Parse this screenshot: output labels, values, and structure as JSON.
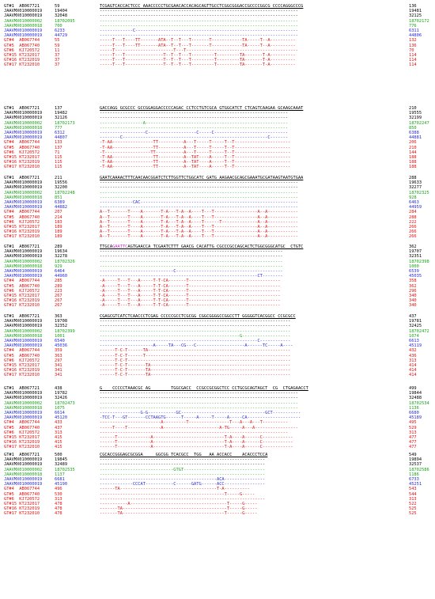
{
  "names": [
    "GT#1  AB067721",
    "JAAVMX010000019",
    "JAAVMX010000019",
    "JAAVMX010000002",
    "JAAVMX010000018",
    "JAAVMX010000019",
    "JAAVMX010000019",
    "GT#4  AB067744",
    "GT#5  AB067740",
    "GT#6  KJ720572",
    "GT#15 KT232017",
    "GT#16 KT232019",
    "GT#17 KT232010"
  ],
  "colors": {
    "black": "#000000",
    "green": "#18a418",
    "blue": "#2828e0",
    "red": "#e01010",
    "highlight": "#d020d0"
  },
  "blocks": [
    {
      "starts": [
        "59",
        "19404",
        "32048",
        "18702095",
        "700",
        "6233",
        "44729",
        "55",
        "59",
        "11",
        "37",
        "37",
        "37"
      ],
      "ends": [
        "136",
        "19481",
        "32125",
        "18702172",
        "776",
        "6311",
        "44806",
        "132",
        "136",
        "70",
        "114",
        "114",
        "114"
      ],
      "seqs": [
        "TCGAGTCACCACTCCC AAACCCCCTGCGAACACCACAGCAGTTGCCTCGGCGGGACCGCCCCGGCG CCCCAGGGCCCG",
        "------------------------------------------------------------------------------",
        "------------------------------------------------------------------------------",
        "------------------------------------------------------------------------------",
        "------------------------------------------------------------------------------",
        "-------------C----------------------------------------------------------------",
        "------------------------------------------------------------------------------",
        "-----T---T----TT-------ATA--T--T---T-------T------------TA-----T--A----------",
        "-----T---T----TT-------ATA--T--T---T-------T------------TA-----T--A----------",
        "-----T-----------------------T---T--------------------------------------------",
        "-----T---T---------------T--T--T---T---------T---------TA-------T-A----------",
        "-----T---T---------------T--T--T---T---------T---------TA-------T-A----------",
        "-----T---T---------------T--T--T---T---------T---------TA-------T-A----------"
      ]
    },
    {
      "starts": [
        "137",
        "19482",
        "32126",
        "18702173",
        "777",
        "6312",
        "44807",
        "133",
        "137",
        "71",
        "115",
        "115",
        "115"
      ],
      "ends": [
        "210",
        "19555",
        "32199",
        "18702247",
        "850",
        "6388",
        "44881",
        "206",
        "210",
        "144",
        "188",
        "188",
        "188"
      ],
      "seqs": [
        "GACCAGG GCGCCC GCCGGAGGACCCCCAGAC CCTCCTGTCGCA GTGGCATCT CTCAGTCAAGAA GCAAGCAAAT",
        "--------------------------------------------------------------------------",
        "--------------------------------------------------------------------------",
        "-----------------A--------------------------------------------------------",
        "--------------------------------------------------------------------------",
        "------------------C-------------------C-----C-----------------------------",
        "--------C---------------------------------------------------------C-------",
        "-T-AA----------------TT----------A---T-----T-----T--T----------------------",
        "-T-AA----------------TT----------A---T-----T-----T--T----------------------",
        "-T------------------TT-----------A---T-----T-----T--T----------------------",
        "-T-AA----------------TT----------A--TAT----A-----T--T----------------------",
        "-T-AA----------------TT----------A--TAT----A-----T--T----------------------",
        "-T-AA----------------TT----------A--TAT----A-----T--T----------------------"
      ]
    },
    {
      "starts": [
        "211",
        "19556",
        "32200",
        "18702248",
        "851",
        "6389",
        "44882",
        "207",
        "214",
        "183",
        "189",
        "189",
        "189"
      ],
      "ends": [
        "288",
        "19633",
        "32277",
        "18702325",
        "928",
        "6463",
        "44959",
        "284",
        "288",
        "222",
        "266",
        "266",
        "266"
      ],
      "seqs": [
        "GAATCAAAACTTTCAACAACGGATCTCTTGGTTCTGGCATC GATG AAGAACGCAGCGAAATGCGATAAGTAATGTGAA",
        "------------------------------------------------------------------------------",
        "------------------------------------------------------------------------------",
        "------------------------------------------------------------------------------",
        "------------------------------------------------------------------------------",
        "-------------CAC--------------------------------------------------------------",
        "------------------------------------------------------------------------------",
        "A--T-------T----A-------T-A---T-A--A----T---T-----------------A--A------------",
        "A--T-------T----A-------T-A---T-A--A----T---T-----------------A--A------------",
        "A--T-------T----A-------T-A---T-A--A----T------T--------------A--A------------",
        "A--T-------T----A-------T-A---T-A--A----T---T-----------------A--A------------",
        "A--T-------T----A-------T-A---T-A--A----T---T-----------------A--A------------",
        "A--T-------T----A-------T-A---T-A--A----T---T-----------------A--A------------"
      ]
    },
    {
      "starts": [
        "289",
        "19634",
        "32278",
        "18702326",
        "929",
        "6464",
        "44960",
        "285",
        "289",
        "223",
        "267",
        "267",
        "267"
      ],
      "ends": [
        "362",
        "19707",
        "32351",
        "18702398",
        "1000",
        "6539",
        "45035",
        "358",
        "362",
        "296",
        "340",
        "340",
        "340"
      ],
      "seq0_pre": "TTGCA",
      "seq0_hl": "GAATTC",
      "seq0_post": "AGTGAACCA TCGAATCTTT GAACG CACATTG CGCCCGCCAGCACTCTGGCGGGCATGC  CTGTC",
      "seqs": [
        "",
        "------------------------------------------------------------------------",
        "------------------------------------------------------------------------",
        "------------------------------------------------------------------------",
        "------------------------------------------------------------------------",
        "-----------------------------C------------------------------------------",
        "--------------------------------------------------------------CT--------",
        "-A-----T---T---A-----T-T-CA-------T------------------------------------",
        "-A-----T---T---A-----T-T-CA-------T------------------------------------",
        "-A-----T---T---A-----T-T-CA-------T------------------------------------",
        "-A-----T---T---A-----T-T-CA-------T------------------------------------",
        "-A-----T---T---A-----T-T-CA-------T------------------------------------",
        "-A-----T---T---A-----T-T-CA-------T------------------------------------"
      ]
    },
    {
      "starts": [
        "363",
        "19708",
        "32352",
        "18702399",
        "1001",
        "6540",
        "45036",
        "359",
        "363",
        "297",
        "341",
        "341",
        "341"
      ],
      "ends": [
        "437",
        "19781",
        "32425",
        "18702472",
        "1074",
        "6613",
        "45119",
        "432",
        "436",
        "313",
        "414",
        "414",
        "414"
      ],
      "seqs": [
        "CGAGCGTCATCTCAACCCTCGAG CCCCCGCCTCGCGG CGGCGGGGCCGGCCTT GGGGGTCACGGCC CCGCGCC",
        "---------------------------------------------------------------------------",
        "---------------------------------------------------------------------------",
        "---------------------------------------------------------------------------",
        "-------------------------------------------------------G-------------------",
        "--------------------------------------------------------------C------------",
        "---------------------A-----TA---CG---C-------------------A------TC-----A----",
        "------T-C-T------TA--------------------------------------------------------",
        "------T-C-T------T---------------------------------------------------------",
        "------T-C-T----------------------------------------------------------------",
        "------T-C-T-------TA-------------------------------------------------------",
        "------T-C-T-------TA-------------------------------------------------------",
        "------T-C-T-------TA-------------------------------------------------------"
      ]
    },
    {
      "starts": [
        "438",
        "19782",
        "32426",
        "18702473",
        "1075",
        "6614",
        "45120",
        "433",
        "437",
        "313",
        "415",
        "415",
        "415"
      ],
      "ends": [
        "499",
        "19844",
        "32488",
        "18702534",
        "1136",
        "6680",
        "45189",
        "495",
        "529",
        "313",
        "477",
        "477",
        "477"
      ],
      "seqs": [
        "G    CCCCCTAAACGC AG        TGGCGACC  CCGCCGCGGCTCC CCTGCGCAGTAGCT  CG  CTGAGAACCT",
        "------------------------------------------------------------------------------",
        "------------------------------------------------------------------------------",
        "------------------------------------------------------------------------------",
        "------------------------------------------------------------------------------",
        "----------------G-G-----------GC---------------------------------GCT-----------",
        "-TCC-T---GT-------CCTAAGTG------T-----A-----T-----A-----CA---------------------",
        "------------------------A---------T----------------T---A---A---T----------",
        "-----T----T-------------A----------------------A-TG-----A---A-----------------",
        "--------------------------------------------------------------------------",
        "------T-------------A----------------------------T-A----A------C------------",
        "------T-------------A----------------------------T-A----A------C------------",
        "------T-------------A----------------------------T-A----A------C------------"
      ]
    },
    {
      "starts": [
        "500",
        "19845",
        "32489",
        "18702535",
        "1137",
        "6681",
        "45190",
        "496",
        "530",
        "313",
        "478",
        "478",
        "478"
      ],
      "ends": [
        "549",
        "19894",
        "32537",
        "18702586",
        "1186",
        "6733",
        "45251",
        "543",
        "544",
        "313",
        "522",
        "525",
        "525"
      ],
      "seqs": [
        "CGCACCGGGAGCGCGGA     GGCGG TCACGCC  TGG   AA ACCACC    ACACCCTCCA",
        "-----------------------------------------------------------------",
        "-----------------------------------------------------------------",
        "-----------------------------GTGT--------------------------------",
        "-----------------------------------------------------------------",
        "----------------------------------------------ACA----------------",
        "-------------CCCAT-----------C------GATG------ACC----------------",
        "------TA--------------------------------------T-A----------",
        "-------------------------------------------------T-----G-----",
        "-----------------------------------------------------------------",
        "-----------A--------------------------------------T-----G-----",
        "-------TA-----------------------------------------T-----G-----",
        "-------TA----------------------------------------T------G-----"
      ]
    }
  ]
}
